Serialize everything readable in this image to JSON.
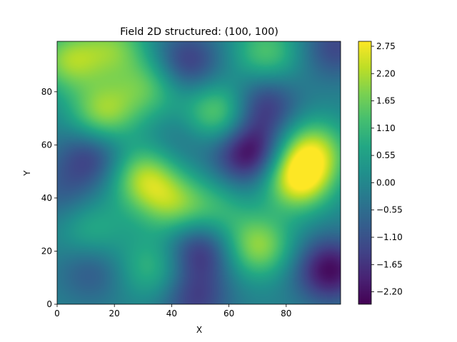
{
  "chart_data": {
    "type": "heatmap",
    "title": "Field 2D structured: (100, 100)",
    "xlabel": "X",
    "ylabel": "Y",
    "xlim": [
      0,
      99
    ],
    "ylim": [
      0,
      99
    ],
    "x_ticks": [
      0,
      20,
      40,
      60,
      80
    ],
    "y_ticks": [
      0,
      20,
      40,
      60,
      80
    ],
    "x_tick_labels": [
      "0",
      "20",
      "40",
      "60",
      "80"
    ],
    "y_tick_labels": [
      "0",
      "20",
      "40",
      "60",
      "80"
    ],
    "grid": false,
    "colormap": "viridis",
    "colorbar": {
      "vmin": -2.45,
      "vmax": 2.85,
      "ticks": [
        2.75,
        2.2,
        1.65,
        1.1,
        0.55,
        0.0,
        -0.55,
        -1.1,
        -1.65,
        -2.2
      ],
      "tick_labels": [
        "2.75",
        "2.20",
        "1.65",
        "1.10",
        "0.55",
        "0.00",
        "−0.55",
        "−1.10",
        "−1.65",
        "−2.20"
      ]
    },
    "field_features": [
      {
        "x": 84,
        "y": 47,
        "value": 2.7
      },
      {
        "x": 89,
        "y": 58,
        "value": 2.1
      },
      {
        "x": 30,
        "y": 48,
        "value": 2.0
      },
      {
        "x": 40,
        "y": 38,
        "value": 1.6
      },
      {
        "x": 4,
        "y": 92,
        "value": 1.9
      },
      {
        "x": 16,
        "y": 72,
        "value": 2.0
      },
      {
        "x": 56,
        "y": 72,
        "value": 1.8
      },
      {
        "x": 32,
        "y": 82,
        "value": 1.4
      },
      {
        "x": 20,
        "y": 97,
        "value": 1.5
      },
      {
        "x": 73,
        "y": 95,
        "value": 1.4
      },
      {
        "x": 70,
        "y": 22,
        "value": 2.0
      },
      {
        "x": 55,
        "y": 35,
        "value": 1.0
      },
      {
        "x": 33,
        "y": 14,
        "value": 1.1
      },
      {
        "x": 12,
        "y": 28,
        "value": 0.9
      },
      {
        "x": 67,
        "y": 57,
        "value": -2.4
      },
      {
        "x": 72,
        "y": 75,
        "value": -1.6
      },
      {
        "x": 12,
        "y": 56,
        "value": -1.5
      },
      {
        "x": 50,
        "y": 21,
        "value": -1.8
      },
      {
        "x": 95,
        "y": 13,
        "value": -2.3
      },
      {
        "x": 45,
        "y": 91,
        "value": -1.6
      },
      {
        "x": 12,
        "y": 13,
        "value": -1.0
      },
      {
        "x": 48,
        "y": 2,
        "value": -1.4
      },
      {
        "x": 2,
        "y": 42,
        "value": -0.8
      },
      {
        "x": 97,
        "y": 97,
        "value": -1.3
      },
      {
        "x": 44,
        "y": 62,
        "value": -0.6
      }
    ],
    "base_value": -0.1
  }
}
